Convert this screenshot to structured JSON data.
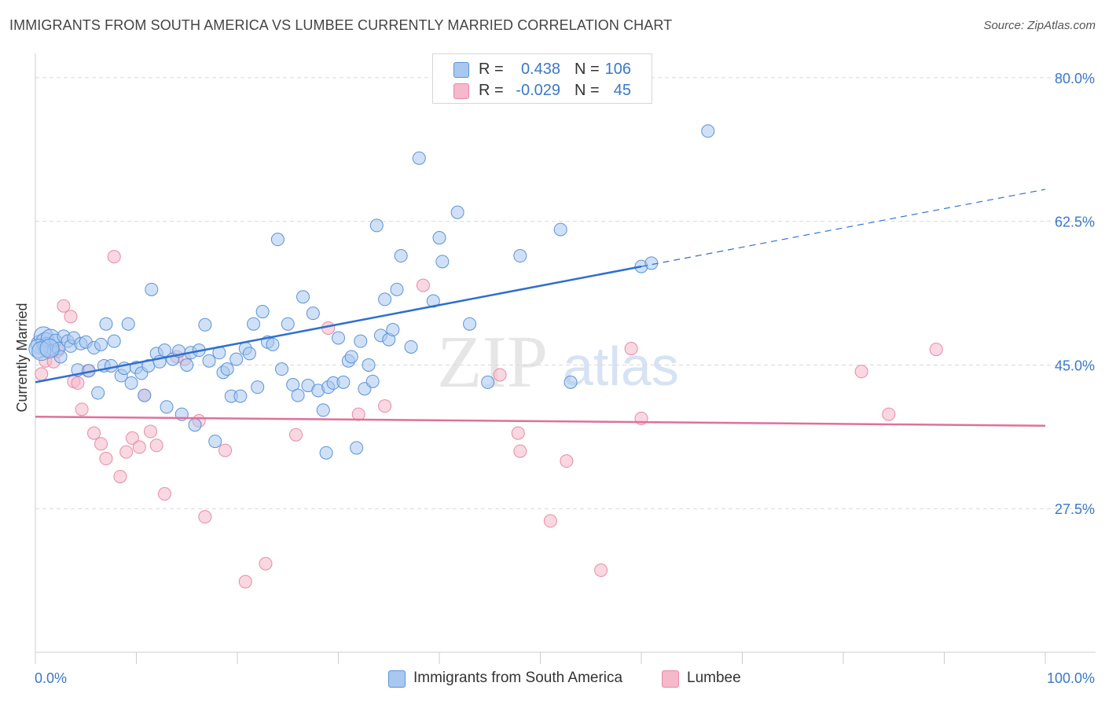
{
  "title": "IMMIGRANTS FROM SOUTH AMERICA VS LUMBEE CURRENTLY MARRIED CORRELATION CHART",
  "source": "Source: ZipAtlas.com",
  "watermark": {
    "zip": "ZIP",
    "atlas": "atlas"
  },
  "legend": {
    "rows": [
      {
        "r_label": "R =",
        "r_value": "0.438",
        "n_label": "N =",
        "n_value": "106",
        "color": "#a9c8f0"
      },
      {
        "r_label": "R =",
        "r_value": "-0.029",
        "n_label": "N =",
        "n_value": "45",
        "color": "#f6b8cb"
      }
    ]
  },
  "bottom_legend": [
    {
      "label": "Immigrants from South America",
      "color": "#a9c8f0"
    },
    {
      "label": "Lumbee",
      "color": "#f6b8cb"
    }
  ],
  "colors": {
    "blue_fill": "#a9c8f0",
    "blue_stroke": "#5b93d9",
    "blue_line": "#2f6fd0",
    "pink_fill": "#f6b8cb",
    "pink_stroke": "#e88aa8",
    "pink_line": "#e0709a",
    "grid": "#d9d9d9",
    "tick_label": "#3a78c9"
  },
  "chart_data": {
    "type": "scatter",
    "title": "IMMIGRANTS FROM SOUTH AMERICA VS LUMBEE CURRENTLY MARRIED CORRELATION CHART",
    "xlabel": "",
    "ylabel": "Currently Married",
    "xlim": [
      0,
      100
    ],
    "ylim": [
      10,
      82
    ],
    "x_tick_labels": [
      "0.0%",
      "100.0%"
    ],
    "y_ticks": [
      27.5,
      45.0,
      62.5,
      80.0
    ],
    "y_tick_labels": [
      "27.5%",
      "45.0%",
      "62.5%",
      "80.0%"
    ],
    "grid": true,
    "legend_position": "top-center",
    "series": [
      {
        "name": "Immigrants from South America",
        "r": 0.438,
        "n": 106,
        "trend": {
          "x0": 0,
          "y0": 42.9,
          "x1": 60,
          "y1": 57.0,
          "dashed_to_x": 100,
          "dashed_to_y": 66.4
        },
        "points": [
          [
            0.5,
            47.5
          ],
          [
            0.8,
            48.5
          ],
          [
            1.0,
            47.8
          ],
          [
            1.2,
            47.2
          ],
          [
            1.5,
            48.2
          ],
          [
            1.8,
            46.8
          ],
          [
            2.0,
            48.0
          ],
          [
            2.3,
            47.0
          ],
          [
            2.5,
            46.0
          ],
          [
            2.8,
            48.5
          ],
          [
            3.2,
            47.9
          ],
          [
            3.5,
            47.3
          ],
          [
            3.8,
            48.3
          ],
          [
            4.2,
            44.4
          ],
          [
            4.5,
            47.6
          ],
          [
            5.0,
            47.8
          ],
          [
            5.3,
            44.3
          ],
          [
            5.8,
            47.1
          ],
          [
            6.2,
            41.6
          ],
          [
            6.5,
            47.5
          ],
          [
            6.8,
            44.9
          ],
          [
            7.0,
            50.0
          ],
          [
            7.5,
            44.9
          ],
          [
            7.8,
            47.9
          ],
          [
            8.5,
            43.7
          ],
          [
            8.8,
            44.6
          ],
          [
            9.2,
            50.0
          ],
          [
            9.5,
            42.8
          ],
          [
            10.0,
            44.7
          ],
          [
            10.5,
            44.0
          ],
          [
            10.8,
            41.3
          ],
          [
            11.2,
            44.9
          ],
          [
            11.5,
            54.2
          ],
          [
            12.0,
            46.4
          ],
          [
            12.3,
            45.4
          ],
          [
            12.8,
            46.8
          ],
          [
            13.0,
            39.9
          ],
          [
            13.6,
            45.7
          ],
          [
            14.2,
            46.7
          ],
          [
            14.5,
            39.0
          ],
          [
            15.0,
            45.0
          ],
          [
            15.4,
            46.5
          ],
          [
            15.8,
            37.7
          ],
          [
            16.2,
            46.8
          ],
          [
            16.8,
            49.9
          ],
          [
            17.2,
            45.5
          ],
          [
            17.8,
            35.7
          ],
          [
            18.2,
            46.5
          ],
          [
            18.6,
            44.1
          ],
          [
            19.0,
            44.5
          ],
          [
            19.4,
            41.2
          ],
          [
            19.9,
            45.7
          ],
          [
            20.3,
            41.2
          ],
          [
            20.8,
            47.0
          ],
          [
            21.2,
            46.4
          ],
          [
            21.6,
            50.0
          ],
          [
            22.0,
            42.3
          ],
          [
            22.5,
            51.5
          ],
          [
            23.0,
            47.8
          ],
          [
            23.5,
            47.5
          ],
          [
            24.0,
            60.3
          ],
          [
            24.4,
            44.5
          ],
          [
            25.0,
            50.0
          ],
          [
            25.5,
            42.6
          ],
          [
            26.0,
            41.3
          ],
          [
            26.5,
            53.3
          ],
          [
            27.0,
            42.5
          ],
          [
            27.5,
            51.3
          ],
          [
            28.0,
            41.9
          ],
          [
            28.5,
            39.5
          ],
          [
            28.8,
            34.3
          ],
          [
            29.0,
            42.3
          ],
          [
            29.5,
            42.8
          ],
          [
            30.0,
            48.3
          ],
          [
            30.5,
            42.9
          ],
          [
            31.0,
            45.5
          ],
          [
            31.3,
            46.0
          ],
          [
            31.8,
            34.9
          ],
          [
            32.2,
            47.9
          ],
          [
            32.6,
            42.1
          ],
          [
            33.0,
            45.0
          ],
          [
            33.4,
            43.0
          ],
          [
            33.8,
            62.0
          ],
          [
            34.2,
            48.6
          ],
          [
            34.6,
            53.0
          ],
          [
            35.0,
            48.1
          ],
          [
            35.4,
            49.3
          ],
          [
            35.8,
            54.2
          ],
          [
            36.2,
            58.3
          ],
          [
            37.2,
            47.2
          ],
          [
            38.0,
            70.2
          ],
          [
            39.4,
            52.8
          ],
          [
            40.0,
            60.5
          ],
          [
            40.3,
            57.6
          ],
          [
            41.8,
            63.6
          ],
          [
            43.0,
            50.0
          ],
          [
            44.8,
            42.9
          ],
          [
            48.0,
            58.3
          ],
          [
            52.0,
            61.5
          ],
          [
            53.0,
            42.9
          ],
          [
            60.0,
            57.0
          ],
          [
            61.0,
            57.4
          ],
          [
            66.6,
            73.5
          ],
          [
            0.3,
            47.0
          ],
          [
            0.6,
            46.7
          ],
          [
            1.4,
            47.0
          ]
        ]
      },
      {
        "name": "Lumbee",
        "r": -0.029,
        "n": 45,
        "trend": {
          "x0": 0,
          "y0": 38.7,
          "x1": 100,
          "y1": 37.6
        },
        "points": [
          [
            0.6,
            43.9
          ],
          [
            1.0,
            45.5
          ],
          [
            1.8,
            45.4
          ],
          [
            2.2,
            46.7
          ],
          [
            2.8,
            52.2
          ],
          [
            3.5,
            50.9
          ],
          [
            3.8,
            43.0
          ],
          [
            4.2,
            42.8
          ],
          [
            4.6,
            39.6
          ],
          [
            5.2,
            44.3
          ],
          [
            5.8,
            36.7
          ],
          [
            6.5,
            35.4
          ],
          [
            7.0,
            33.6
          ],
          [
            7.8,
            58.2
          ],
          [
            8.4,
            31.4
          ],
          [
            9.0,
            34.4
          ],
          [
            9.6,
            36.1
          ],
          [
            10.3,
            35.0
          ],
          [
            10.8,
            41.3
          ],
          [
            11.4,
            36.9
          ],
          [
            12.0,
            35.2
          ],
          [
            12.8,
            29.3
          ],
          [
            14.0,
            46.0
          ],
          [
            14.8,
            45.7
          ],
          [
            16.2,
            38.2
          ],
          [
            16.8,
            26.5
          ],
          [
            18.8,
            34.6
          ],
          [
            20.8,
            18.6
          ],
          [
            22.8,
            20.8
          ],
          [
            25.8,
            36.5
          ],
          [
            29.0,
            49.5
          ],
          [
            32.0,
            39.0
          ],
          [
            34.6,
            40.0
          ],
          [
            38.4,
            54.7
          ],
          [
            46.0,
            43.8
          ],
          [
            47.8,
            36.7
          ],
          [
            48.0,
            34.5
          ],
          [
            51.0,
            26.0
          ],
          [
            52.6,
            33.3
          ],
          [
            56.0,
            20.0
          ],
          [
            59.0,
            47.0
          ],
          [
            60.0,
            38.5
          ],
          [
            81.8,
            44.2
          ],
          [
            84.5,
            39.0
          ],
          [
            89.2,
            46.9
          ]
        ]
      }
    ]
  }
}
